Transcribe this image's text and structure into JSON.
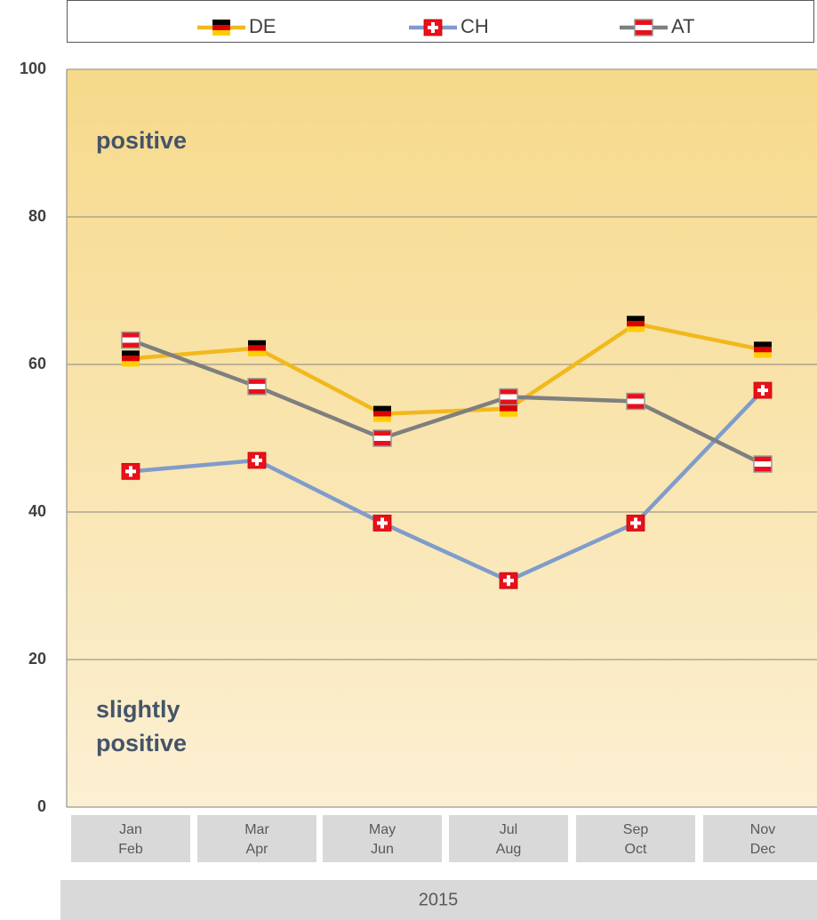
{
  "chart_data": {
    "type": "line",
    "categories": [
      [
        "Jan",
        "Feb"
      ],
      [
        "Mar",
        "Apr"
      ],
      [
        "May",
        "Jun"
      ],
      [
        "Jul",
        "Aug"
      ],
      [
        "Sep",
        "Oct"
      ],
      [
        "Nov",
        "Dec"
      ]
    ],
    "group_label": "2015",
    "series": [
      {
        "name": "DE",
        "color": "#f0b91c",
        "values": [
          60.8,
          62.2,
          53.3,
          54.0,
          65.5,
          62.0
        ]
      },
      {
        "name": "CH",
        "color": "#7f9ccb",
        "values": [
          45.5,
          47.0,
          38.5,
          30.7,
          38.5,
          56.5
        ]
      },
      {
        "name": "AT",
        "color": "#7f7f7f",
        "values": [
          63.3,
          57.0,
          50.0,
          55.6,
          55.0,
          46.5
        ]
      }
    ],
    "ylim": [
      0,
      100
    ],
    "yticks": [
      0,
      20,
      40,
      60,
      80,
      100
    ],
    "grid": true,
    "annotations": [
      [
        "positive"
      ],
      [
        "slightly",
        "positive"
      ]
    ],
    "legend": "top"
  }
}
